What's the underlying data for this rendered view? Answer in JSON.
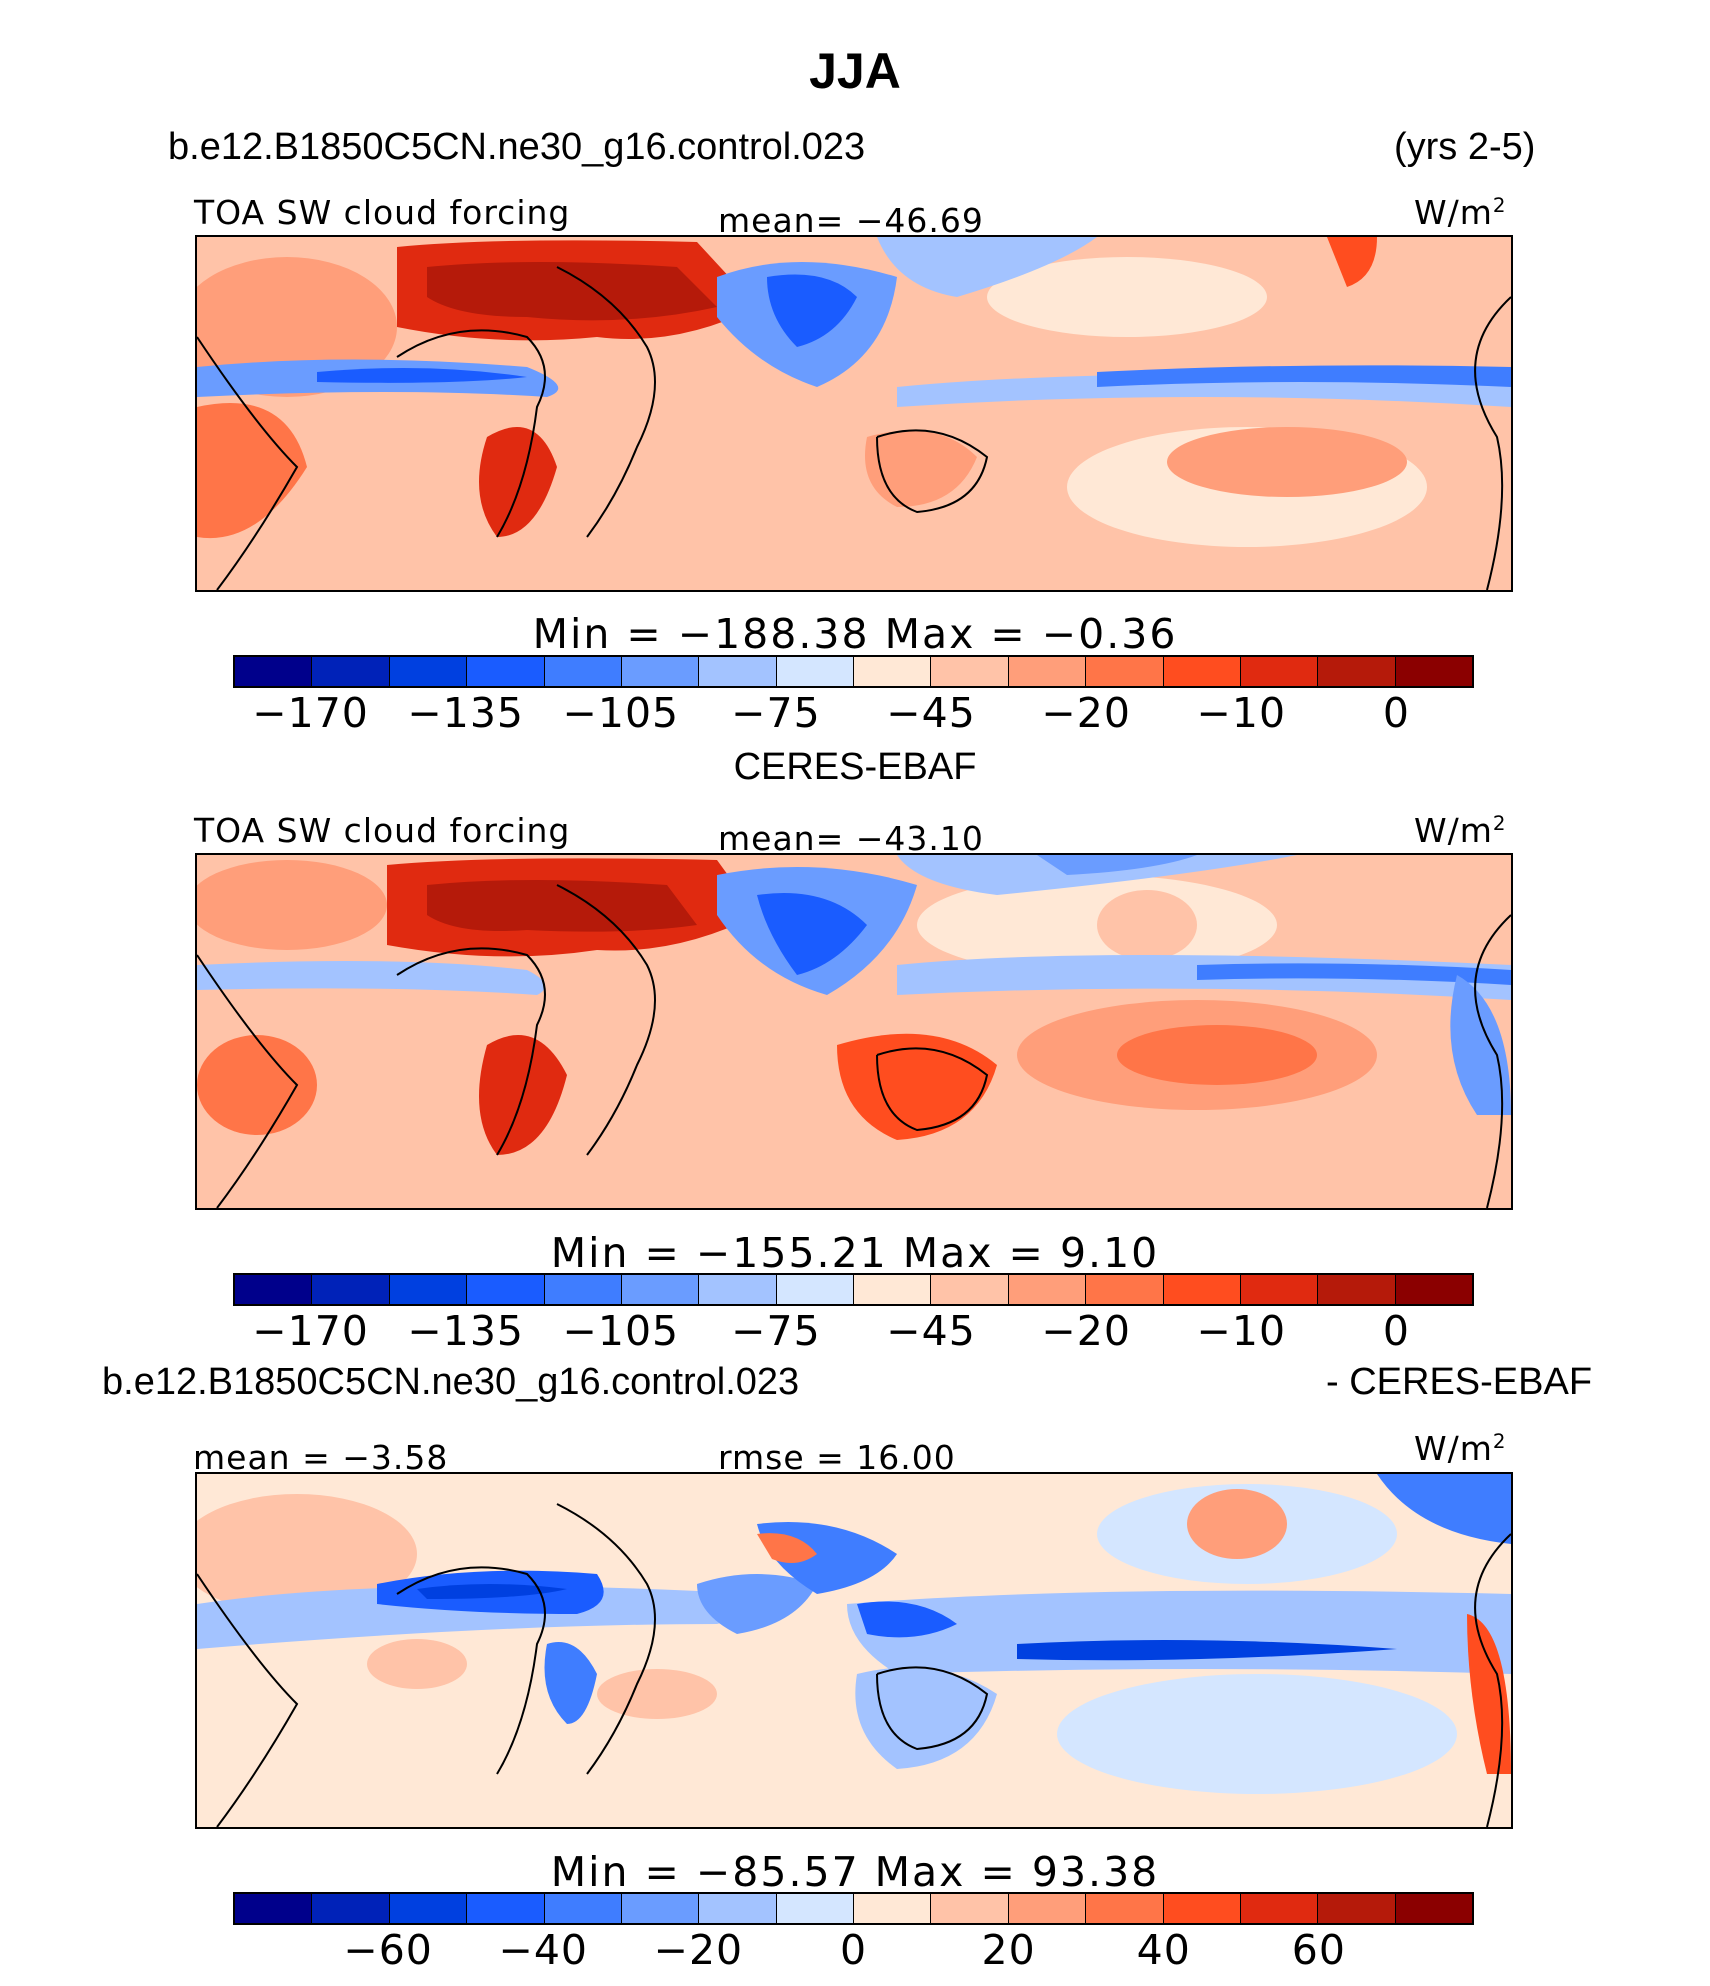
{
  "season_title": "JJA",
  "header": {
    "case_name": "b.e12.B1850C5CN.ne30_g16.control.023",
    "years": "(yrs 2-5)"
  },
  "panels": [
    {
      "variable": "TOA SW cloud forcing",
      "stat_text": "mean= −46.69",
      "units": "W/m",
      "units_sup": "2",
      "min_max": "Min  =  −188.38  Max  =   −0.36",
      "colorbar_ticks": [
        "−170",
        "−135",
        "−105",
        "−75",
        "−45",
        "−20",
        "−10",
        "0"
      ],
      "colorbar_colors": [
        "#00008b",
        "#0022b8",
        "#0040e0",
        "#1a5cff",
        "#3f7dff",
        "#6a9cff",
        "#a3c3ff",
        "#d4e6ff",
        "#ffe8d6",
        "#ffc3a8",
        "#ff9e7a",
        "#ff7548",
        "#ff4d1f",
        "#e02a10",
        "#b51a0a",
        "#8b0000"
      ]
    },
    {
      "source_title": "CERES-EBAF",
      "variable": "TOA SW cloud forcing",
      "stat_text": "mean= −43.10",
      "units": "W/m",
      "units_sup": "2",
      "min_max": "Min  =  −155.21  Max  =    9.10",
      "colorbar_ticks": [
        "−170",
        "−135",
        "−105",
        "−75",
        "−45",
        "−20",
        "−10",
        "0"
      ],
      "colorbar_colors": [
        "#00008b",
        "#0022b8",
        "#0040e0",
        "#1a5cff",
        "#3f7dff",
        "#6a9cff",
        "#a3c3ff",
        "#d4e6ff",
        "#ffe8d6",
        "#ffc3a8",
        "#ff9e7a",
        "#ff7548",
        "#ff4d1f",
        "#e02a10",
        "#b51a0a",
        "#8b0000"
      ]
    },
    {
      "diff_left": "b.e12.B1850C5CN.ne30_g16.control.023",
      "diff_right": "- CERES-EBAF",
      "mean_text": "mean =   −3.58",
      "rmse_text": "rmse =   16.00",
      "units": "W/m",
      "units_sup": "2",
      "min_max": "Min  =  −85.57  Max  =   93.38",
      "colorbar_ticks": [
        "−60",
        "−40",
        "−20",
        "0",
        "20",
        "40",
        "60"
      ],
      "colorbar_colors": [
        "#00008b",
        "#0022b8",
        "#0040e0",
        "#1a5cff",
        "#3f7dff",
        "#6a9cff",
        "#a3c3ff",
        "#d4e6ff",
        "#ffe8d6",
        "#ffc3a8",
        "#ff9e7a",
        "#ff7548",
        "#ff4d1f",
        "#e02a10",
        "#b51a0a",
        "#8b0000"
      ]
    }
  ]
}
